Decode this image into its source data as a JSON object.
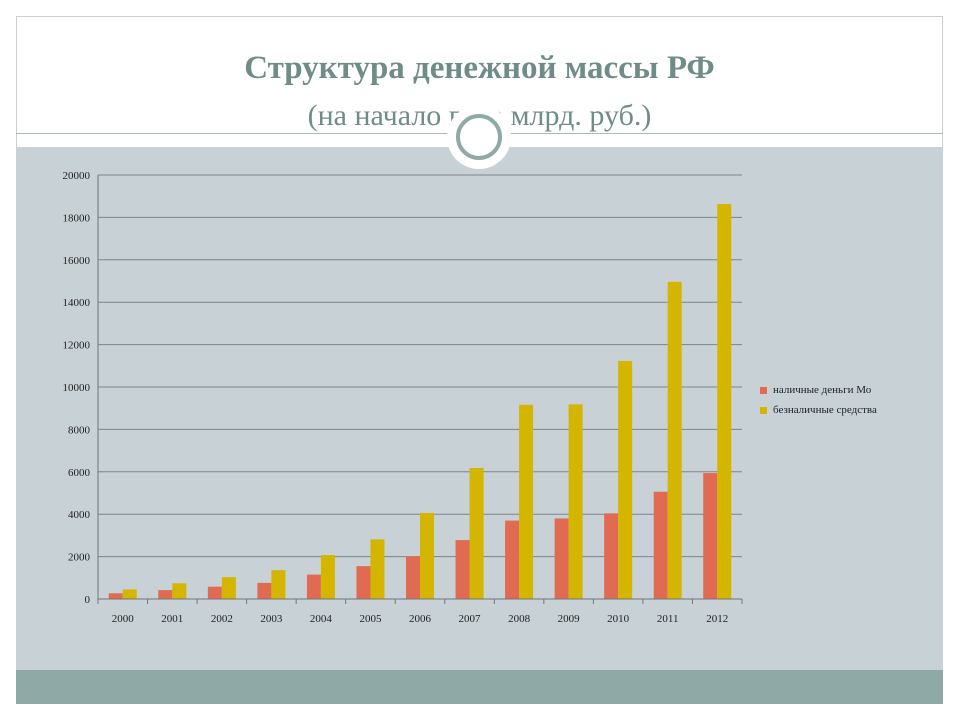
{
  "slide": {
    "title": "Структура денежной массы РФ",
    "subtitle": "(на начало года млрд. руб.)"
  },
  "chart_data": {
    "type": "bar",
    "categories": [
      "2000",
      "2001",
      "2002",
      "2003",
      "2004",
      "2005",
      "2006",
      "2007",
      "2008",
      "2009",
      "2010",
      "2011",
      "2012"
    ],
    "series": [
      {
        "name": "наличные деньги Мо",
        "color": "#e06b52",
        "values": [
          270,
          420,
          580,
          760,
          1150,
          1550,
          2010,
          2780,
          3700,
          3800,
          4040,
          5060,
          5940
        ]
      },
      {
        "name": "безналичные средства",
        "color": "#d4b500",
        "values": [
          450,
          740,
          1030,
          1360,
          2070,
          2810,
          4060,
          6180,
          9160,
          9180,
          11230,
          14960,
          18630
        ]
      }
    ],
    "ylim": [
      0,
      20000
    ],
    "yticks": [
      0,
      2000,
      4000,
      6000,
      8000,
      10000,
      12000,
      14000,
      16000,
      18000,
      20000
    ],
    "grid": true,
    "legend_position": "right"
  }
}
